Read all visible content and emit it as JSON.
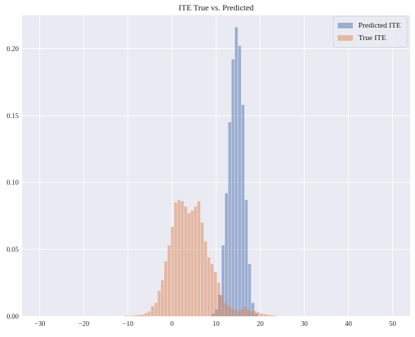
{
  "chart_data": {
    "type": "bar",
    "title": "ITE True vs. Predicted",
    "xlabel": "",
    "ylabel": "",
    "xlim": [
      -34,
      54
    ],
    "ylim": [
      0,
      0.225
    ],
    "xticks": [
      -30,
      -20,
      -10,
      0,
      10,
      20,
      30,
      40,
      50
    ],
    "yticks": [
      0.0,
      0.05,
      0.1,
      0.15,
      0.2
    ],
    "ytick_labels": [
      "0.00",
      "0.05",
      "0.10",
      "0.15",
      "0.20"
    ],
    "grid": true,
    "legend_position": "top-right",
    "bin_width": 0.75,
    "series": [
      {
        "name": "Predicted ITE",
        "color": "#4c72b0",
        "opacity": 0.5,
        "bins": [
          {
            "x": 9.0,
            "y": 0.002
          },
          {
            "x": 9.75,
            "y": 0.005
          },
          {
            "x": 10.5,
            "y": 0.016
          },
          {
            "x": 11.25,
            "y": 0.053
          },
          {
            "x": 12.0,
            "y": 0.092
          },
          {
            "x": 12.75,
            "y": 0.145
          },
          {
            "x": 13.5,
            "y": 0.192
          },
          {
            "x": 14.25,
            "y": 0.216
          },
          {
            "x": 15.0,
            "y": 0.202
          },
          {
            "x": 15.75,
            "y": 0.158
          },
          {
            "x": 16.5,
            "y": 0.087
          },
          {
            "x": 17.25,
            "y": 0.039
          },
          {
            "x": 18.0,
            "y": 0.01
          },
          {
            "x": 18.75,
            "y": 0.002
          }
        ]
      },
      {
        "name": "True ITE",
        "color": "#dd8452",
        "opacity": 0.5,
        "bins": [
          {
            "x": -10.75,
            "y": 0.0005
          },
          {
            "x": -10.0,
            "y": 0.0003
          },
          {
            "x": -9.25,
            "y": 0.0005
          },
          {
            "x": -8.5,
            "y": 0.0008
          },
          {
            "x": -7.75,
            "y": 0.001
          },
          {
            "x": -7.0,
            "y": 0.0013
          },
          {
            "x": -6.25,
            "y": 0.0023
          },
          {
            "x": -5.5,
            "y": 0.0035
          },
          {
            "x": -4.75,
            "y": 0.0075
          },
          {
            "x": -4.0,
            "y": 0.01
          },
          {
            "x": -3.25,
            "y": 0.019
          },
          {
            "x": -2.5,
            "y": 0.027
          },
          {
            "x": -1.75,
            "y": 0.041
          },
          {
            "x": -1.0,
            "y": 0.053
          },
          {
            "x": -0.25,
            "y": 0.067
          },
          {
            "x": 0.5,
            "y": 0.085
          },
          {
            "x": 1.25,
            "y": 0.087
          },
          {
            "x": 2.0,
            "y": 0.086
          },
          {
            "x": 2.75,
            "y": 0.082
          },
          {
            "x": 3.5,
            "y": 0.077
          },
          {
            "x": 4.25,
            "y": 0.079
          },
          {
            "x": 5.0,
            "y": 0.082
          },
          {
            "x": 5.75,
            "y": 0.086
          },
          {
            "x": 6.5,
            "y": 0.07
          },
          {
            "x": 7.25,
            "y": 0.056
          },
          {
            "x": 8.0,
            "y": 0.044
          },
          {
            "x": 8.75,
            "y": 0.039
          },
          {
            "x": 9.5,
            "y": 0.033
          },
          {
            "x": 10.25,
            "y": 0.025
          },
          {
            "x": 11.0,
            "y": 0.016
          },
          {
            "x": 11.75,
            "y": 0.01
          },
          {
            "x": 12.5,
            "y": 0.008
          },
          {
            "x": 13.25,
            "y": 0.006
          },
          {
            "x": 14.0,
            "y": 0.005
          },
          {
            "x": 14.75,
            "y": 0.004
          },
          {
            "x": 15.5,
            "y": 0.005
          },
          {
            "x": 16.25,
            "y": 0.007
          },
          {
            "x": 17.0,
            "y": 0.005
          },
          {
            "x": 17.75,
            "y": 0.004
          },
          {
            "x": 18.5,
            "y": 0.004
          },
          {
            "x": 19.25,
            "y": 0.003
          },
          {
            "x": 20.0,
            "y": 0.002
          },
          {
            "x": 20.75,
            "y": 0.0015
          },
          {
            "x": 21.5,
            "y": 0.0012
          },
          {
            "x": 22.25,
            "y": 0.0008
          },
          {
            "x": 23.0,
            "y": 0.0005
          }
        ]
      }
    ]
  },
  "colors": {
    "plot_background": "#eaeaf2",
    "grid": "#ffffff",
    "text": "#262626"
  }
}
